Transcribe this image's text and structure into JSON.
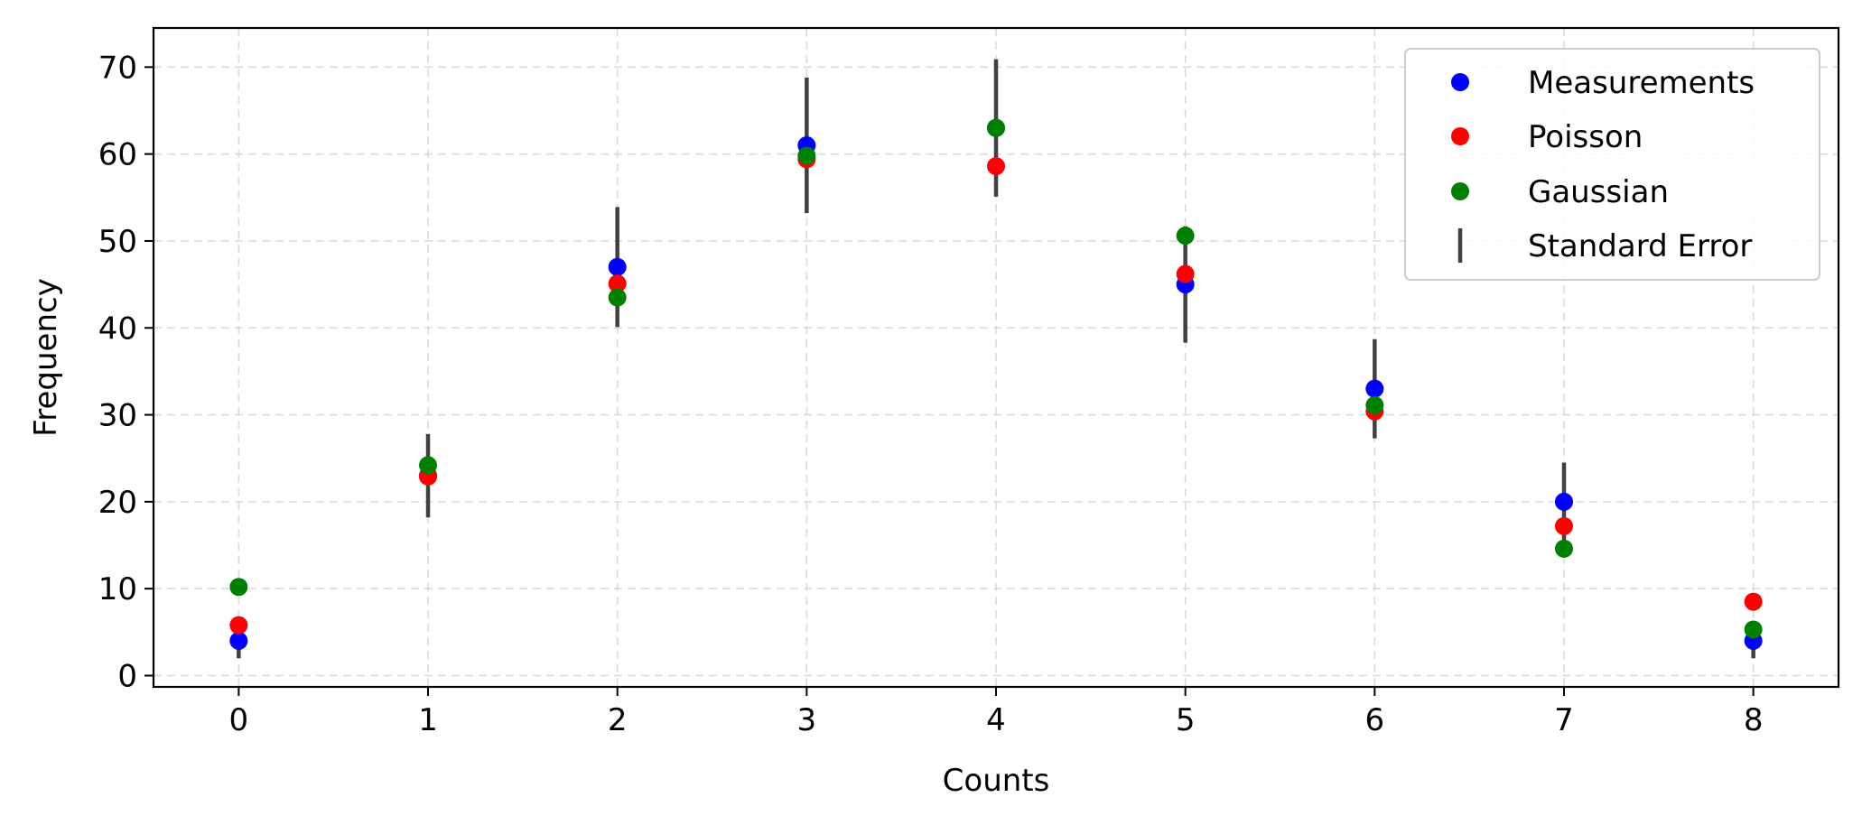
{
  "chart_data": {
    "type": "scatter",
    "title": "",
    "xlabel": "Counts",
    "ylabel": "Frequency",
    "xlim": [
      -0.45,
      8.45
    ],
    "ylim": [
      -1.3,
      74.5
    ],
    "x_ticks": [
      0,
      1,
      2,
      3,
      4,
      5,
      6,
      7,
      8
    ],
    "y_ticks": [
      0,
      10,
      20,
      30,
      40,
      50,
      60,
      70
    ],
    "grid": true,
    "legend_position": "upper right",
    "x": [
      0,
      1,
      2,
      3,
      4,
      5,
      6,
      7,
      8
    ],
    "series": [
      {
        "name": "Measurements",
        "marker": "point",
        "color": "#0000ff",
        "values": [
          4,
          23,
          47,
          61,
          63,
          45,
          33,
          20,
          4
        ]
      },
      {
        "name": "Poisson",
        "marker": "point",
        "color": "#ff0000",
        "values": [
          5.8,
          22.9,
          45.1,
          59.4,
          58.6,
          46.2,
          30.4,
          17.2,
          8.5
        ]
      },
      {
        "name": "Gaussian",
        "marker": "point",
        "color": "#008000",
        "values": [
          10.2,
          24.2,
          43.5,
          59.8,
          63.0,
          50.6,
          31.1,
          14.6,
          5.3
        ]
      }
    ],
    "error_bars": {
      "name": "Standard Error",
      "color": "#404040",
      "center": [
        4,
        23,
        47,
        61,
        63,
        45,
        33,
        20,
        4
      ],
      "error": [
        2.0,
        4.8,
        6.9,
        7.8,
        7.9,
        6.7,
        5.7,
        4.5,
        2.0
      ]
    }
  }
}
